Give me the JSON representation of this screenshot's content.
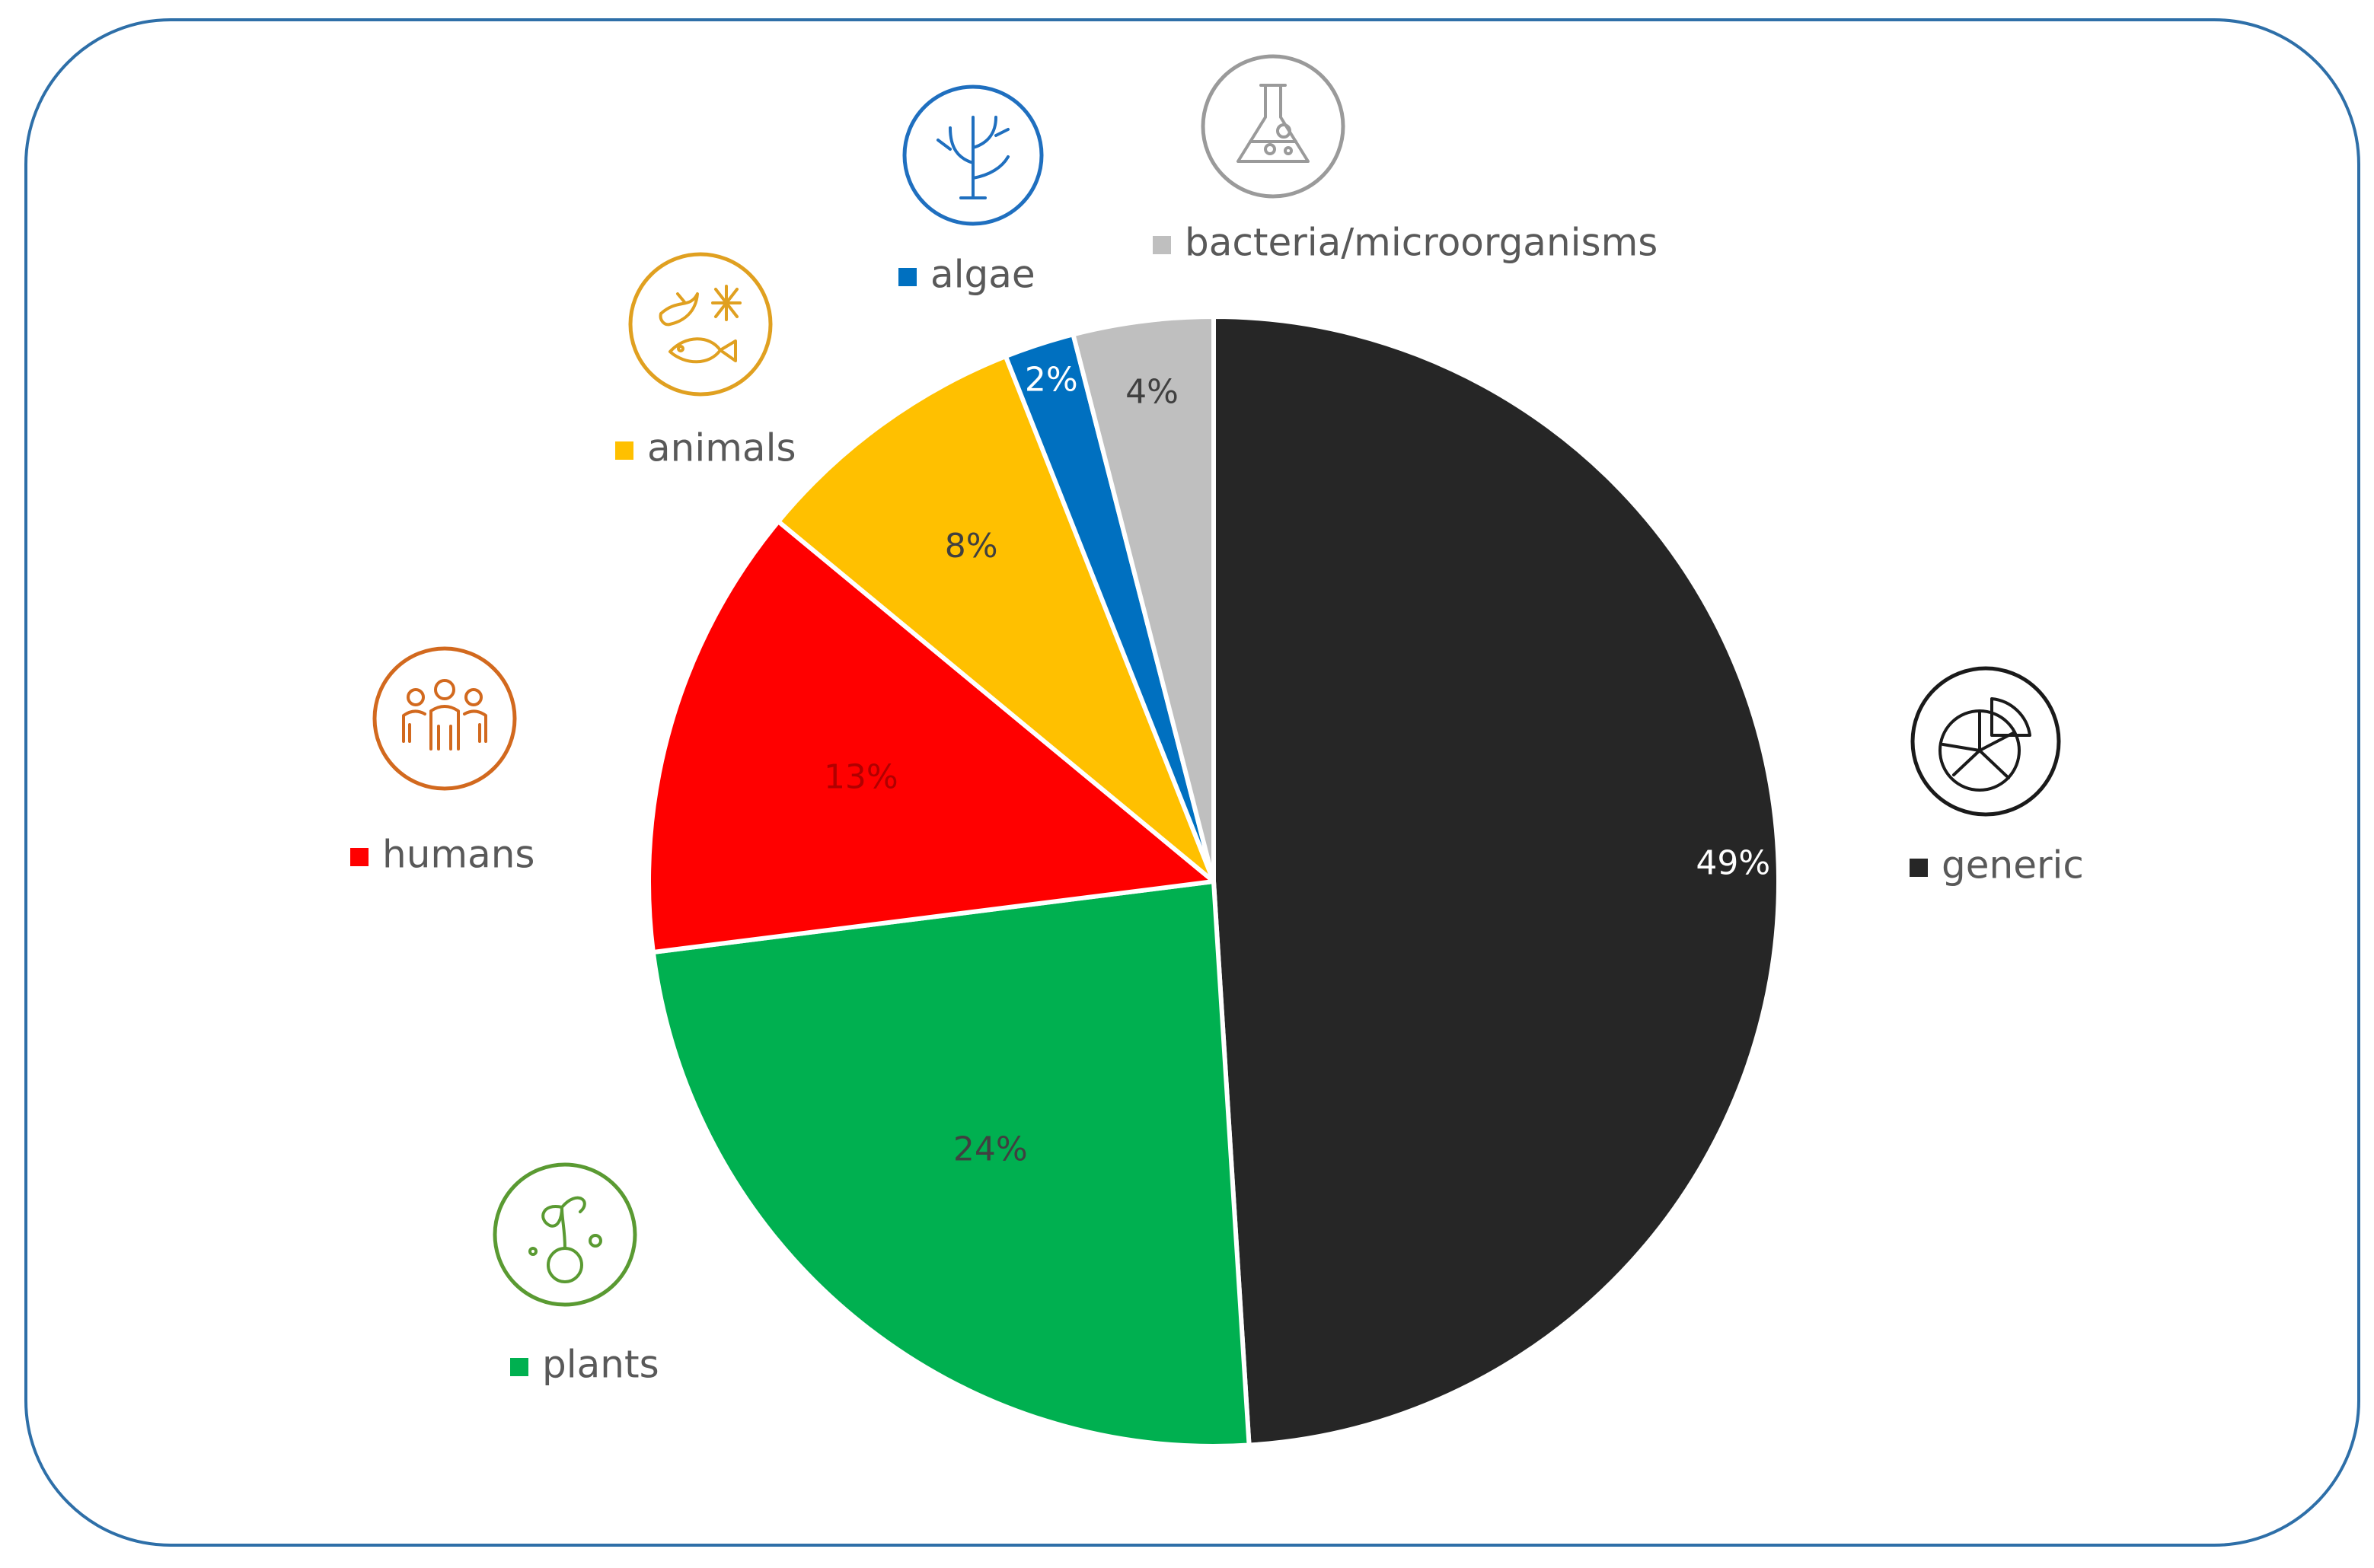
{
  "chart_data": {
    "type": "pie",
    "title": "",
    "slices": [
      {
        "label": "generic",
        "value": 49,
        "value_label": "49%",
        "color": "#262626",
        "value_label_color": "#ffffff",
        "icon": "pie-chart-icon",
        "icon_color": "#1a1a1a"
      },
      {
        "label": "plants",
        "value": 24,
        "value_label": "24%",
        "color": "#00b050",
        "value_label_color": "#404040",
        "icon": "sprout-icon",
        "icon_color": "#5a9a32"
      },
      {
        "label": "humans",
        "value": 13,
        "value_label": "13%",
        "color": "#ff0000",
        "value_label_color": "#b00000",
        "icon": "people-icon",
        "icon_color": "#d2691e"
      },
      {
        "label": "animals",
        "value": 8,
        "value_label": "8%",
        "color": "#ffc000",
        "value_label_color": "#404040",
        "icon": "animals-icon",
        "icon_color": "#e0a020"
      },
      {
        "label": "algae",
        "value": 2,
        "value_label": "2%",
        "color": "#0070c0",
        "value_label_color": "#ffffff",
        "icon": "algae-icon",
        "icon_color": "#1f6fbf"
      },
      {
        "label": "bacteria/microorganisms",
        "value": 4,
        "value_label": "4%",
        "color": "#bfbfbf",
        "value_label_color": "#404040",
        "icon": "flask-icon",
        "icon_color": "#9a9a9a"
      }
    ],
    "frame_color": "#2e6fa8",
    "legend_text_color": "#595959"
  }
}
